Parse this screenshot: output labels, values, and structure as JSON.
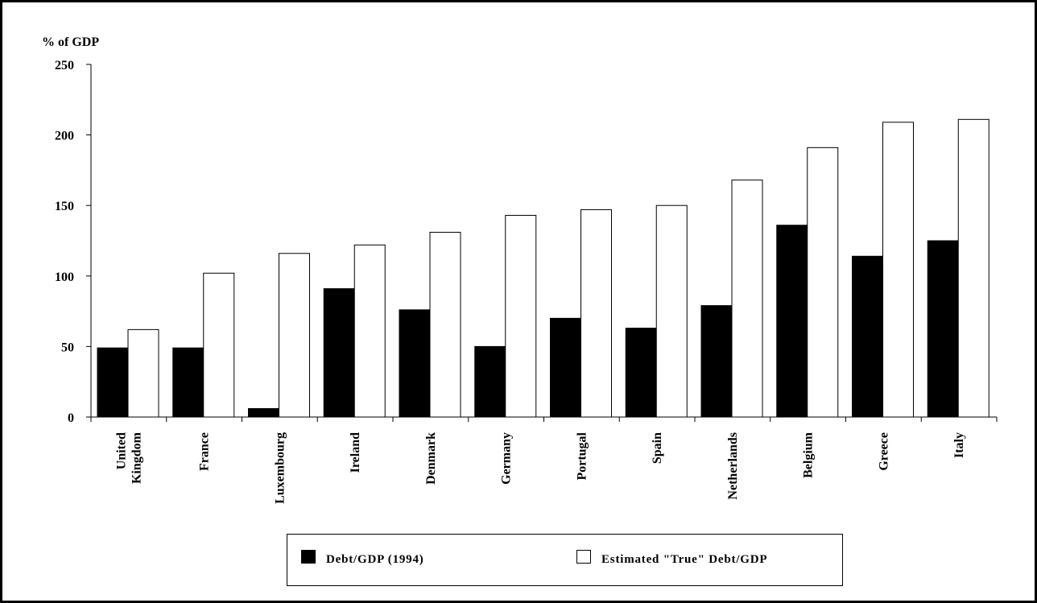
{
  "chart_data": {
    "type": "bar",
    "title": "",
    "ylabel": "% of GDP",
    "xlabel": "",
    "ylim": [
      0,
      250
    ],
    "yticks": [
      0,
      50,
      100,
      150,
      200,
      250
    ],
    "categories": [
      "United Kingdom",
      "France",
      "Luxembourg",
      "Ireland",
      "Denmark",
      "Germany",
      "Portugal",
      "Spain",
      "Netherlands",
      "Belgium",
      "Greece",
      "Italy"
    ],
    "category_lines": [
      [
        "United",
        "Kingdom"
      ],
      [
        "France"
      ],
      [
        "Luxembourg"
      ],
      [
        "Ireland"
      ],
      [
        "Denmark"
      ],
      [
        "Germany"
      ],
      [
        "Portugal"
      ],
      [
        "Spain"
      ],
      [
        "Netherlands"
      ],
      [
        "Belgium"
      ],
      [
        "Greece"
      ],
      [
        "Italy"
      ]
    ],
    "series": [
      {
        "name": "Debt/GDP (1994)",
        "color": "#000000",
        "values": [
          49,
          49,
          6,
          91,
          76,
          50,
          70,
          63,
          79,
          136,
          114,
          125
        ]
      },
      {
        "name": "Estimated \"True\" Debt/GDP",
        "color": "#ffffff",
        "values": [
          62,
          102,
          116,
          122,
          131,
          143,
          147,
          150,
          168,
          191,
          209,
          211
        ]
      }
    ],
    "legend_position": "bottom",
    "grid": false
  }
}
